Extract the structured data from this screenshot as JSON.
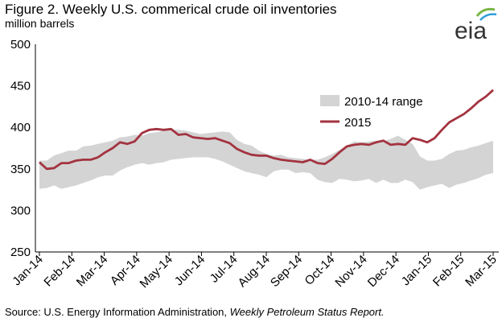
{
  "figure": {
    "title": "Figure 2.  Weekly U.S. commerical crude oil inventories",
    "subtitle": "million barrels",
    "logo_text": "eia",
    "source_prefix": "Source:  U.S. Energy Information Administration, ",
    "source_italic": "Weekly Petroleum Status Report."
  },
  "colors": {
    "range_fill": "#d4d4d4",
    "line_2015": "#a33340",
    "logo_arc_green": "#7ab648",
    "logo_arc_blue": "#2f9fd8"
  },
  "chart_data": {
    "type": "area",
    "ylabel": "",
    "ylim": [
      250,
      500
    ],
    "yticks": [
      250,
      300,
      350,
      400,
      450,
      500
    ],
    "x_tick_labels": [
      "Jan-14",
      "Feb-14",
      "Mar-14",
      "Apr-14",
      "May-14",
      "Jun-14",
      "Jul-14",
      "Aug-14",
      "Sep-14",
      "Oct-14",
      "Nov-14",
      "Dec-14",
      "Jan-15",
      "Feb-15",
      "Mar-15"
    ],
    "x_units": "weeks since Jan-14",
    "legend": {
      "placement": "upper-right",
      "entries": [
        "2010-14 range",
        "2015"
      ]
    },
    "grid": false,
    "series": [
      {
        "name": "2010-14 range",
        "kind": "band",
        "x": [
          0,
          1,
          2,
          3,
          4,
          5,
          6,
          7,
          8,
          9,
          10,
          11,
          12,
          13,
          14,
          15,
          16,
          17,
          18,
          19,
          20,
          21,
          22,
          23,
          24,
          25,
          26,
          27,
          28,
          29,
          30,
          31,
          32,
          33,
          34,
          35,
          36,
          37,
          38,
          39,
          40,
          41,
          42,
          43,
          44,
          45,
          46,
          47,
          48,
          49,
          50,
          51,
          52,
          53,
          54,
          55,
          56,
          57,
          58,
          59,
          60,
          61,
          62
        ],
        "low": [
          326,
          327,
          330,
          326,
          328,
          330,
          333,
          336,
          340,
          342,
          342,
          348,
          352,
          355,
          357,
          355,
          357,
          358,
          361,
          362,
          363,
          364,
          364,
          364,
          362,
          359,
          355,
          351,
          347,
          345,
          343,
          340,
          347,
          349,
          349,
          345,
          346,
          345,
          337,
          334,
          333,
          338,
          337,
          335,
          336,
          338,
          333,
          337,
          333,
          333,
          337,
          334,
          325,
          328,
          330,
          332,
          327,
          331,
          333,
          336,
          339,
          343,
          345
        ],
        "high": [
          360,
          360,
          366,
          369,
          372,
          372,
          377,
          378,
          380,
          382,
          384,
          388,
          389,
          391,
          390,
          393,
          394,
          396,
          397,
          397,
          396,
          394,
          392,
          393,
          394,
          395,
          394,
          385,
          380,
          378,
          372,
          368,
          366,
          367,
          364,
          363,
          362,
          361,
          361,
          364,
          368,
          373,
          378,
          383,
          382,
          383,
          384,
          383,
          386,
          390,
          385,
          380,
          365,
          360,
          360,
          362,
          368,
          372,
          373,
          376,
          378,
          381,
          384
        ]
      },
      {
        "name": "2015",
        "kind": "line",
        "x": [
          0,
          1,
          2,
          3,
          4,
          5,
          6,
          7,
          8,
          9,
          10,
          11,
          12,
          13,
          14,
          15,
          16,
          17,
          18,
          19,
          20,
          21,
          22,
          23,
          24,
          25,
          26,
          27,
          28,
          29,
          30,
          31,
          32,
          33,
          34,
          35,
          36,
          37,
          38,
          39,
          40,
          41,
          42,
          43,
          44,
          45,
          46,
          47,
          48,
          49,
          50,
          51,
          52,
          53,
          54,
          55,
          56,
          57,
          58,
          59,
          60,
          61,
          62
        ],
        "values": [
          358,
          350,
          351,
          357,
          357,
          360,
          361,
          361,
          364,
          370,
          375,
          382,
          380,
          383,
          393,
          397,
          398,
          397,
          398,
          391,
          392,
          388,
          387,
          386,
          387,
          384,
          381,
          374,
          370,
          367,
          366,
          366,
          363,
          361,
          360,
          359,
          358,
          361,
          357,
          356,
          362,
          370,
          377,
          379,
          380,
          379,
          382,
          384,
          379,
          380,
          379,
          387,
          385,
          382,
          387,
          397,
          406,
          411,
          416,
          423,
          431,
          437,
          445
        ]
      }
    ]
  }
}
